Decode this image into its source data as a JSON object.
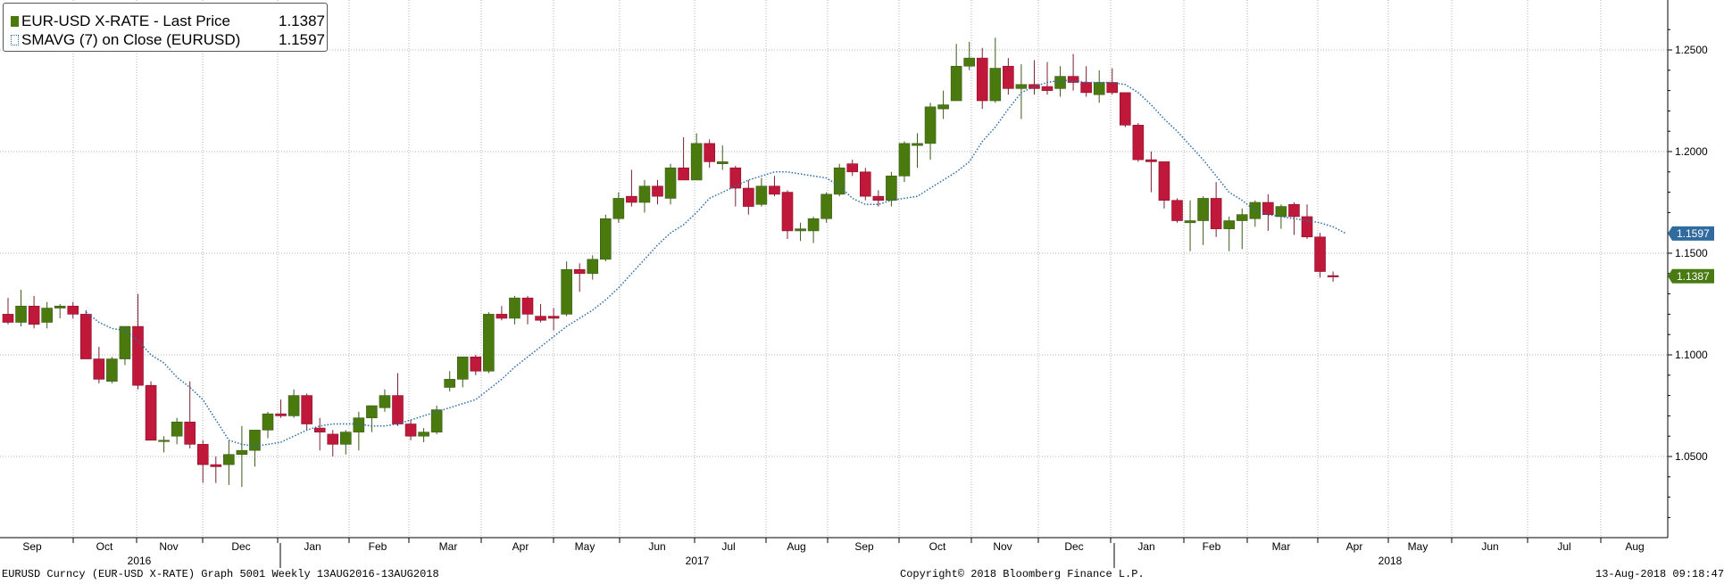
{
  "legend": {
    "series1_label": "EUR-USD X-RATE - Last Price",
    "series1_value": "1.1387",
    "series2_label": "SMAVG (7)  on Close (EURUSD)",
    "series2_value": "1.1597"
  },
  "footer": {
    "left": "EURUSD Curncy (EUR-USD X-RATE) Graph 5001  Weekly 13AUG2016-13AUG2018",
    "center": "Copyright© 2018 Bloomberg Finance L.P.",
    "right": "13-Aug-2018 09:18:47"
  },
  "colors": {
    "up": "#4a7a0e",
    "down": "#c0183a",
    "sma": "#2a6aa8",
    "grid": "#b0b0b0",
    "sma_badge": "#2f6b9e",
    "last_badge": "#4a7a12"
  },
  "chart_data": {
    "type": "candlestick",
    "title": "",
    "ylim": [
      1.0,
      1.27
    ],
    "y_ticks": [
      "1.0500",
      "1.1000",
      "1.1500",
      "1.2000",
      "1.2500"
    ],
    "x_month_labels": [
      "Sep",
      "Oct",
      "Nov",
      "Dec",
      "Jan",
      "Feb",
      "Mar",
      "Apr",
      "May",
      "Jun",
      "Jul",
      "Aug",
      "Sep",
      "Oct",
      "Nov",
      "Dec",
      "Jan",
      "Feb",
      "Mar",
      "Apr",
      "May",
      "Jun",
      "Jul",
      "Aug"
    ],
    "x_year_labels": [
      "2016",
      "2017",
      "2018"
    ],
    "grid": true,
    "legend_position": "top-left",
    "last_price_label": "1.1387",
    "sma_label": "1.1597",
    "candles": [
      {
        "o": 1.12,
        "h": 1.128,
        "l": 1.115,
        "c": 1.116
      },
      {
        "o": 1.116,
        "h": 1.132,
        "l": 1.114,
        "c": 1.124
      },
      {
        "o": 1.124,
        "h": 1.129,
        "l": 1.113,
        "c": 1.115
      },
      {
        "o": 1.116,
        "h": 1.126,
        "l": 1.113,
        "c": 1.123
      },
      {
        "o": 1.123,
        "h": 1.125,
        "l": 1.118,
        "c": 1.124
      },
      {
        "o": 1.124,
        "h": 1.126,
        "l": 1.118,
        "c": 1.12
      },
      {
        "o": 1.12,
        "h": 1.122,
        "l": 1.098,
        "c": 1.098
      },
      {
        "o": 1.098,
        "h": 1.104,
        "l": 1.086,
        "c": 1.088
      },
      {
        "o": 1.087,
        "h": 1.099,
        "l": 1.086,
        "c": 1.098
      },
      {
        "o": 1.098,
        "h": 1.114,
        "l": 1.095,
        "c": 1.114
      },
      {
        "o": 1.114,
        "h": 1.13,
        "l": 1.083,
        "c": 1.085
      },
      {
        "o": 1.085,
        "h": 1.087,
        "l": 1.058,
        "c": 1.058
      },
      {
        "o": 1.058,
        "h": 1.06,
        "l": 1.052,
        "c": 1.058
      },
      {
        "o": 1.06,
        "h": 1.069,
        "l": 1.056,
        "c": 1.067
      },
      {
        "o": 1.067,
        "h": 1.087,
        "l": 1.054,
        "c": 1.056
      },
      {
        "o": 1.056,
        "h": 1.058,
        "l": 1.037,
        "c": 1.046
      },
      {
        "o": 1.046,
        "h": 1.05,
        "l": 1.037,
        "c": 1.045
      },
      {
        "o": 1.046,
        "h": 1.058,
        "l": 1.036,
        "c": 1.051
      },
      {
        "o": 1.051,
        "h": 1.065,
        "l": 1.035,
        "c": 1.053
      },
      {
        "o": 1.053,
        "h": 1.063,
        "l": 1.045,
        "c": 1.063
      },
      {
        "o": 1.063,
        "h": 1.072,
        "l": 1.059,
        "c": 1.071
      },
      {
        "o": 1.071,
        "h": 1.078,
        "l": 1.069,
        "c": 1.07
      },
      {
        "o": 1.07,
        "h": 1.083,
        "l": 1.069,
        "c": 1.08
      },
      {
        "o": 1.08,
        "h": 1.081,
        "l": 1.063,
        "c": 1.066
      },
      {
        "o": 1.064,
        "h": 1.069,
        "l": 1.053,
        "c": 1.062
      },
      {
        "o": 1.061,
        "h": 1.063,
        "l": 1.05,
        "c": 1.056
      },
      {
        "o": 1.056,
        "h": 1.063,
        "l": 1.051,
        "c": 1.062
      },
      {
        "o": 1.062,
        "h": 1.072,
        "l": 1.053,
        "c": 1.069
      },
      {
        "o": 1.069,
        "h": 1.075,
        "l": 1.062,
        "c": 1.075
      },
      {
        "o": 1.074,
        "h": 1.083,
        "l": 1.072,
        "c": 1.08
      },
      {
        "o": 1.08,
        "h": 1.091,
        "l": 1.065,
        "c": 1.066
      },
      {
        "o": 1.066,
        "h": 1.068,
        "l": 1.058,
        "c": 1.06
      },
      {
        "o": 1.06,
        "h": 1.064,
        "l": 1.057,
        "c": 1.062
      },
      {
        "o": 1.062,
        "h": 1.075,
        "l": 1.061,
        "c": 1.073
      },
      {
        "o": 1.084,
        "h": 1.092,
        "l": 1.082,
        "c": 1.088
      },
      {
        "o": 1.088,
        "h": 1.099,
        "l": 1.084,
        "c": 1.099
      },
      {
        "o": 1.099,
        "h": 1.1,
        "l": 1.09,
        "c": 1.092
      },
      {
        "o": 1.092,
        "h": 1.121,
        "l": 1.091,
        "c": 1.12
      },
      {
        "o": 1.12,
        "h": 1.124,
        "l": 1.117,
        "c": 1.118
      },
      {
        "o": 1.118,
        "h": 1.129,
        "l": 1.115,
        "c": 1.128
      },
      {
        "o": 1.128,
        "h": 1.129,
        "l": 1.115,
        "c": 1.12
      },
      {
        "o": 1.119,
        "h": 1.125,
        "l": 1.116,
        "c": 1.117
      },
      {
        "o": 1.119,
        "h": 1.123,
        "l": 1.112,
        "c": 1.118
      },
      {
        "o": 1.12,
        "h": 1.146,
        "l": 1.119,
        "c": 1.142
      },
      {
        "o": 1.142,
        "h": 1.145,
        "l": 1.131,
        "c": 1.14
      },
      {
        "o": 1.14,
        "h": 1.149,
        "l": 1.137,
        "c": 1.147
      },
      {
        "o": 1.147,
        "h": 1.169,
        "l": 1.146,
        "c": 1.167
      },
      {
        "o": 1.167,
        "h": 1.18,
        "l": 1.165,
        "c": 1.177
      },
      {
        "o": 1.178,
        "h": 1.191,
        "l": 1.173,
        "c": 1.175
      },
      {
        "o": 1.175,
        "h": 1.186,
        "l": 1.17,
        "c": 1.183
      },
      {
        "o": 1.183,
        "h": 1.186,
        "l": 1.174,
        "c": 1.178
      },
      {
        "o": 1.177,
        "h": 1.194,
        "l": 1.174,
        "c": 1.192
      },
      {
        "o": 1.192,
        "h": 1.207,
        "l": 1.186,
        "c": 1.186
      },
      {
        "o": 1.186,
        "h": 1.209,
        "l": 1.186,
        "c": 1.204
      },
      {
        "o": 1.204,
        "h": 1.206,
        "l": 1.192,
        "c": 1.195
      },
      {
        "o": 1.194,
        "h": 1.203,
        "l": 1.191,
        "c": 1.195
      },
      {
        "o": 1.192,
        "h": 1.193,
        "l": 1.173,
        "c": 1.182
      },
      {
        "o": 1.182,
        "h": 1.186,
        "l": 1.169,
        "c": 1.173
      },
      {
        "o": 1.174,
        "h": 1.187,
        "l": 1.173,
        "c": 1.183
      },
      {
        "o": 1.183,
        "h": 1.188,
        "l": 1.178,
        "c": 1.179
      },
      {
        "o": 1.18,
        "h": 1.181,
        "l": 1.157,
        "c": 1.161
      },
      {
        "o": 1.161,
        "h": 1.165,
        "l": 1.156,
        "c": 1.162
      },
      {
        "o": 1.161,
        "h": 1.168,
        "l": 1.155,
        "c": 1.167
      },
      {
        "o": 1.167,
        "h": 1.18,
        "l": 1.165,
        "c": 1.179
      },
      {
        "o": 1.179,
        "h": 1.194,
        "l": 1.178,
        "c": 1.192
      },
      {
        "o": 1.194,
        "h": 1.196,
        "l": 1.188,
        "c": 1.19
      },
      {
        "o": 1.19,
        "h": 1.192,
        "l": 1.176,
        "c": 1.178
      },
      {
        "o": 1.178,
        "h": 1.181,
        "l": 1.173,
        "c": 1.176
      },
      {
        "o": 1.176,
        "h": 1.19,
        "l": 1.173,
        "c": 1.188
      },
      {
        "o": 1.188,
        "h": 1.205,
        "l": 1.185,
        "c": 1.204
      },
      {
        "o": 1.203,
        "h": 1.209,
        "l": 1.192,
        "c": 1.204
      },
      {
        "o": 1.204,
        "h": 1.224,
        "l": 1.196,
        "c": 1.222
      },
      {
        "o": 1.221,
        "h": 1.23,
        "l": 1.216,
        "c": 1.223
      },
      {
        "o": 1.225,
        "h": 1.253,
        "l": 1.225,
        "c": 1.242
      },
      {
        "o": 1.242,
        "h": 1.254,
        "l": 1.24,
        "c": 1.246
      },
      {
        "o": 1.246,
        "h": 1.251,
        "l": 1.221,
        "c": 1.225
      },
      {
        "o": 1.225,
        "h": 1.256,
        "l": 1.224,
        "c": 1.241
      },
      {
        "o": 1.242,
        "h": 1.246,
        "l": 1.228,
        "c": 1.231
      },
      {
        "o": 1.231,
        "h": 1.243,
        "l": 1.216,
        "c": 1.233
      },
      {
        "o": 1.233,
        "h": 1.245,
        "l": 1.228,
        "c": 1.231
      },
      {
        "o": 1.232,
        "h": 1.244,
        "l": 1.228,
        "c": 1.23
      },
      {
        "o": 1.231,
        "h": 1.242,
        "l": 1.227,
        "c": 1.237
      },
      {
        "o": 1.237,
        "h": 1.248,
        "l": 1.23,
        "c": 1.234
      },
      {
        "o": 1.234,
        "h": 1.242,
        "l": 1.227,
        "c": 1.229
      },
      {
        "o": 1.228,
        "h": 1.24,
        "l": 1.224,
        "c": 1.234
      },
      {
        "o": 1.234,
        "h": 1.241,
        "l": 1.228,
        "c": 1.229
      },
      {
        "o": 1.229,
        "h": 1.229,
        "l": 1.212,
        "c": 1.213
      },
      {
        "o": 1.213,
        "h": 1.214,
        "l": 1.195,
        "c": 1.196
      },
      {
        "o": 1.196,
        "h": 1.2,
        "l": 1.18,
        "c": 1.195
      },
      {
        "o": 1.195,
        "h": 1.195,
        "l": 1.172,
        "c": 1.176
      },
      {
        "o": 1.176,
        "h": 1.177,
        "l": 1.165,
        "c": 1.166
      },
      {
        "o": 1.165,
        "h": 1.176,
        "l": 1.151,
        "c": 1.166
      },
      {
        "o": 1.166,
        "h": 1.178,
        "l": 1.154,
        "c": 1.177
      },
      {
        "o": 1.177,
        "h": 1.185,
        "l": 1.158,
        "c": 1.162
      },
      {
        "o": 1.162,
        "h": 1.168,
        "l": 1.151,
        "c": 1.166
      },
      {
        "o": 1.166,
        "h": 1.172,
        "l": 1.152,
        "c": 1.169
      },
      {
        "o": 1.167,
        "h": 1.176,
        "l": 1.163,
        "c": 1.175
      },
      {
        "o": 1.175,
        "h": 1.179,
        "l": 1.161,
        "c": 1.169
      },
      {
        "o": 1.168,
        "h": 1.174,
        "l": 1.162,
        "c": 1.173
      },
      {
        "o": 1.174,
        "h": 1.175,
        "l": 1.159,
        "c": 1.168
      },
      {
        "o": 1.168,
        "h": 1.174,
        "l": 1.157,
        "c": 1.158
      },
      {
        "o": 1.158,
        "h": 1.16,
        "l": 1.138,
        "c": 1.141
      },
      {
        "o": 1.139,
        "h": 1.141,
        "l": 1.136,
        "c": 1.1387
      }
    ],
    "sma": [
      null,
      null,
      null,
      null,
      null,
      null,
      1.121,
      1.116,
      1.113,
      1.112,
      1.107,
      1.1,
      1.096,
      1.089,
      1.084,
      1.078,
      1.068,
      1.058,
      1.056,
      1.055,
      1.056,
      1.057,
      1.06,
      1.063,
      1.065,
      1.066,
      1.066,
      1.066,
      1.065,
      1.065,
      1.066,
      1.068,
      1.07,
      1.072,
      1.074,
      1.076,
      1.078,
      1.083,
      1.088,
      1.094,
      1.099,
      1.104,
      1.109,
      1.114,
      1.118,
      1.122,
      1.127,
      1.133,
      1.14,
      1.147,
      1.154,
      1.16,
      1.164,
      1.17,
      1.177,
      1.18,
      1.183,
      1.186,
      1.188,
      1.19,
      1.19,
      1.189,
      1.188,
      1.187,
      1.183,
      1.177,
      1.174,
      1.174,
      1.176,
      1.177,
      1.178,
      1.182,
      1.186,
      1.19,
      1.195,
      1.205,
      1.212,
      1.221,
      1.229,
      1.232,
      1.234,
      1.235,
      1.235,
      1.234,
      1.234,
      1.234,
      1.233,
      1.229,
      1.223,
      1.216,
      1.21,
      1.203,
      1.196,
      1.188,
      1.18,
      1.176,
      1.171,
      1.169,
      1.168,
      1.167,
      1.166,
      1.165,
      1.163,
      1.1597
    ]
  }
}
